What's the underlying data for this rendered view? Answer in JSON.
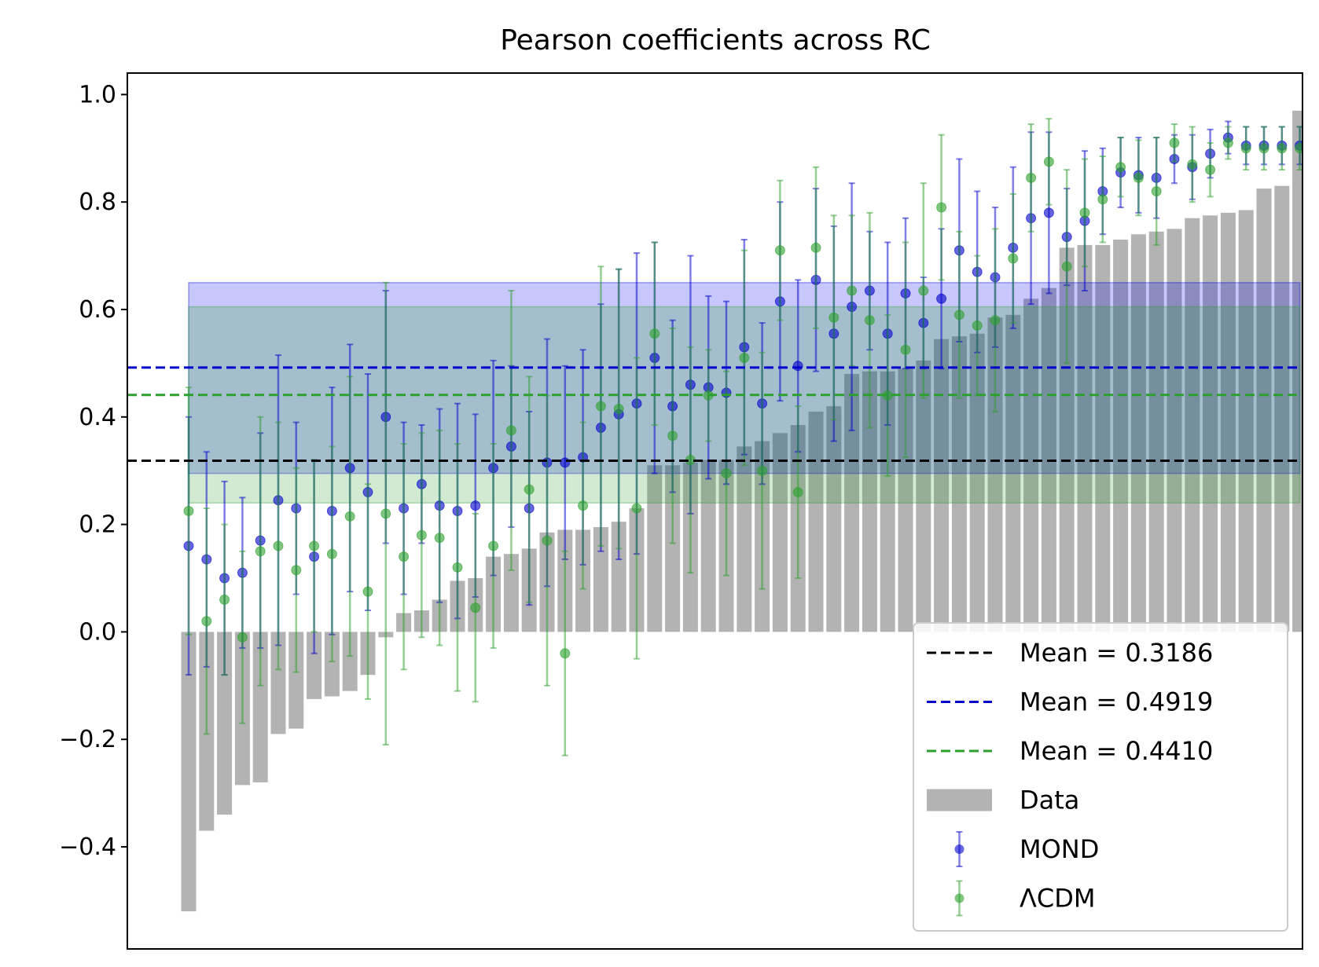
{
  "chart_data": {
    "type": "bar",
    "title": "Pearson coefficients across RC",
    "xlabel": "",
    "ylabel": "",
    "ylim": [
      -0.59,
      1.04
    ],
    "yticks": [
      -0.4,
      -0.2,
      0.0,
      0.2,
      0.4,
      0.6,
      0.8,
      1.0
    ],
    "ytick_labels": [
      "−0.4",
      "−0.2",
      "0.0",
      "0.2",
      "0.4",
      "0.6",
      "0.8",
      "1.0"
    ],
    "grid": false,
    "legend_position": "lower-right",
    "colors": {
      "data": "#999999",
      "mond": "#0000cc",
      "lcdm": "#2ca02c",
      "data_mean": "#000000"
    },
    "data": {
      "name": "Data",
      "values": [
        -0.52,
        -0.37,
        -0.34,
        -0.285,
        -0.28,
        -0.19,
        -0.18,
        -0.125,
        -0.12,
        -0.11,
        -0.08,
        -0.01,
        0.035,
        0.04,
        0.06,
        0.095,
        0.1,
        0.14,
        0.145,
        0.155,
        0.185,
        0.19,
        0.19,
        0.195,
        0.205,
        0.23,
        0.31,
        0.31,
        0.315,
        0.32,
        0.32,
        0.345,
        0.355,
        0.37,
        0.385,
        0.41,
        0.42,
        0.48,
        0.485,
        0.485,
        0.49,
        0.505,
        0.545,
        0.55,
        0.555,
        0.585,
        0.59,
        0.62,
        0.64,
        0.715,
        0.72,
        0.72,
        0.73,
        0.74,
        0.745,
        0.75,
        0.77,
        0.775,
        0.78,
        0.785,
        0.825,
        0.83,
        0.97
      ]
    },
    "series": [
      {
        "name": "MOND",
        "values": [
          0.16,
          0.135,
          0.1,
          0.11,
          0.17,
          0.245,
          0.23,
          0.14,
          0.225,
          0.305,
          0.26,
          0.4,
          0.23,
          0.275,
          0.235,
          0.225,
          0.235,
          0.305,
          0.345,
          0.23,
          0.315,
          0.315,
          0.325,
          0.38,
          0.405,
          0.425,
          0.51,
          0.42,
          0.46,
          0.455,
          0.445,
          0.53,
          0.425,
          0.615,
          0.495,
          0.655,
          0.555,
          0.605,
          0.635,
          0.555,
          0.63,
          0.575,
          0.62,
          0.71,
          0.67,
          0.66,
          0.715,
          0.77,
          0.78,
          0.735,
          0.765,
          0.82,
          0.855,
          0.85,
          0.845,
          0.88,
          0.865,
          0.89,
          0.92,
          0.905,
          0.905,
          0.905,
          0.905
        ],
        "errors": [
          0.24,
          0.2,
          0.18,
          0.14,
          0.2,
          0.27,
          0.16,
          0.18,
          0.23,
          0.23,
          0.22,
          0.235,
          0.16,
          0.11,
          0.18,
          0.2,
          0.17,
          0.2,
          0.15,
          0.18,
          0.23,
          0.18,
          0.2,
          0.23,
          0.27,
          0.28,
          0.215,
          0.16,
          0.24,
          0.17,
          0.17,
          0.2,
          0.15,
          0.185,
          0.16,
          0.17,
          0.2,
          0.23,
          0.11,
          0.17,
          0.14,
          0.085,
          0.13,
          0.17,
          0.15,
          0.13,
          0.15,
          0.16,
          0.15,
          0.09,
          0.13,
          0.08,
          0.065,
          0.07,
          0.075,
          0.045,
          0.06,
          0.045,
          0.03,
          0.035,
          0.035,
          0.035,
          0.035
        ]
      },
      {
        "name": "ΛCDM",
        "values": [
          0.225,
          0.02,
          0.06,
          -0.01,
          0.15,
          0.16,
          0.115,
          0.16,
          0.145,
          0.215,
          0.075,
          0.22,
          0.14,
          0.18,
          0.175,
          0.12,
          0.045,
          0.16,
          0.375,
          0.265,
          0.17,
          -0.04,
          0.235,
          0.42,
          0.415,
          0.23,
          0.555,
          0.365,
          0.32,
          0.44,
          0.295,
          0.51,
          0.3,
          0.71,
          0.26,
          0.715,
          0.585,
          0.635,
          0.58,
          0.44,
          0.525,
          0.635,
          0.79,
          0.59,
          0.57,
          0.58,
          0.695,
          0.845,
          0.875,
          0.68,
          0.78,
          0.805,
          0.865,
          0.845,
          0.82,
          0.91,
          0.87,
          0.86,
          0.91,
          0.9,
          0.9,
          0.9,
          0.9
        ],
        "errors": [
          0.23,
          0.21,
          0.14,
          0.16,
          0.25,
          0.23,
          0.19,
          0.16,
          0.2,
          0.26,
          0.2,
          0.43,
          0.21,
          0.19,
          0.2,
          0.23,
          0.175,
          0.19,
          0.26,
          0.21,
          0.27,
          0.19,
          0.155,
          0.26,
          0.26,
          0.28,
          0.17,
          0.2,
          0.21,
          0.085,
          0.19,
          0.2,
          0.22,
          0.13,
          0.16,
          0.15,
          0.19,
          0.14,
          0.2,
          0.15,
          0.2,
          0.2,
          0.135,
          0.155,
          0.13,
          0.17,
          0.12,
          0.1,
          0.08,
          0.18,
          0.1,
          0.08,
          0.055,
          0.07,
          0.1,
          0.035,
          0.07,
          0.05,
          0.03,
          0.04,
          0.04,
          0.04,
          0.04
        ]
      }
    ],
    "hlines": [
      {
        "label": "Mean = 0.3186",
        "value": 0.3186,
        "color": "#000000"
      },
      {
        "label": "Mean = 0.4919",
        "value": 0.4919,
        "color": "#0000cc"
      },
      {
        "label": "Mean = 0.4410",
        "value": 0.441,
        "color": "#2ca02c"
      }
    ],
    "bands": [
      {
        "series": "MOND",
        "low": 0.295,
        "high": 0.65,
        "color": "#0000ee"
      },
      {
        "series": "ΛCDM",
        "low": 0.24,
        "high": 0.605,
        "color": "#2ca02c"
      }
    ],
    "legend": [
      {
        "label": "Mean = 0.3186",
        "kind": "dashed",
        "color": "#000000"
      },
      {
        "label": "Mean = 0.4919",
        "kind": "dashed",
        "color": "#0000cc"
      },
      {
        "label": "Mean = 0.4410",
        "kind": "dashed",
        "color": "#2ca02c"
      },
      {
        "label": "Data",
        "kind": "patch",
        "color": "#999999"
      },
      {
        "label": "MOND",
        "kind": "errorpoint",
        "color": "#0000cc"
      },
      {
        "label": "ΛCDM",
        "kind": "errorpoint",
        "color": "#2ca02c"
      }
    ]
  }
}
